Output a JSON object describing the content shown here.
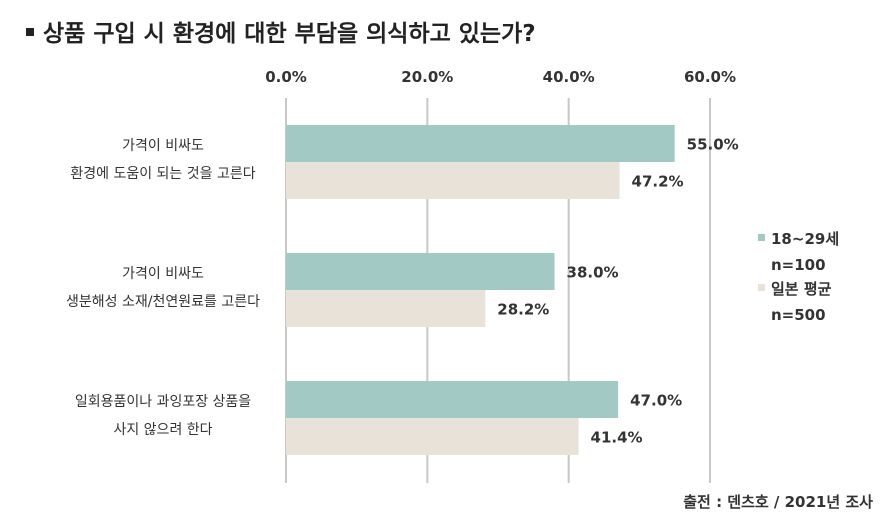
{
  "title": "상품 구입 시 환경에 대한 부담을 의식하고 있는가?",
  "source": "출전 : 덴츠호 / 2021년 조사",
  "colors": {
    "series1": "#a3c9c4",
    "series2": "#e8e2d9",
    "grid": "#c8c8c8",
    "text": "#333333"
  },
  "chart_data": {
    "type": "bar",
    "orientation": "horizontal",
    "categories": [
      [
        "가격이 비싸도",
        "환경에 도움이 되는 것을 고른다"
      ],
      [
        "가격이 비싸도",
        "생분해성 소재/천연원료를 고른다"
      ],
      [
        "일회용품이나 과잉포장 상품을",
        "사지 않으려 한다"
      ]
    ],
    "series": [
      {
        "name": "18~29세",
        "note": "n=100",
        "values": [
          55.0,
          38.0,
          47.0
        ],
        "labels": [
          "55.0%",
          "38.0%",
          "47.0%"
        ]
      },
      {
        "name": "일본 평균",
        "note": "n=500",
        "values": [
          47.2,
          28.2,
          41.4
        ],
        "labels": [
          "47.2%",
          "28.2%",
          "41.4%"
        ]
      }
    ],
    "xlim": [
      0,
      60
    ],
    "xticks": [
      0,
      20,
      40,
      60
    ],
    "xtick_labels": [
      "0.0%",
      "20.0%",
      "40.0%",
      "60.0%"
    ],
    "grid": true,
    "legend_position": "right"
  }
}
